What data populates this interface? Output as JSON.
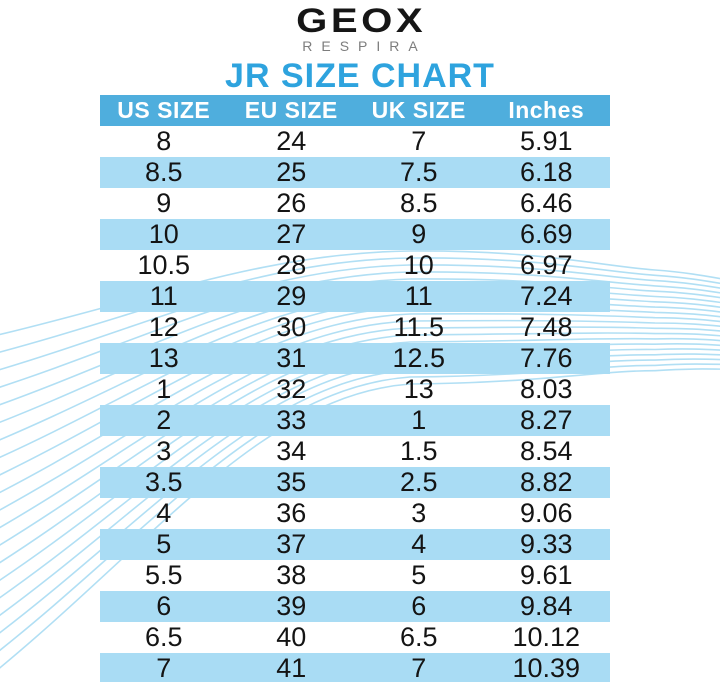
{
  "brand": {
    "logo": "GEOX",
    "tagline": "RESPIRA"
  },
  "chart_data": {
    "type": "table",
    "title": "JR SIZE CHART",
    "columns": [
      "US SIZE",
      "EU SIZE",
      "UK SIZE",
      "Inches"
    ],
    "rows": [
      [
        "8",
        "24",
        "7",
        "5.91"
      ],
      [
        "8.5",
        "25",
        "7.5",
        "6.18"
      ],
      [
        "9",
        "26",
        "8.5",
        "6.46"
      ],
      [
        "10",
        "27",
        "9",
        "6.69"
      ],
      [
        "10.5",
        "28",
        "10",
        "6.97"
      ],
      [
        "11",
        "29",
        "11",
        "7.24"
      ],
      [
        "12",
        "30",
        "11.5",
        "7.48"
      ],
      [
        "13",
        "31",
        "12.5",
        "7.76"
      ],
      [
        "1",
        "32",
        "13",
        "8.03"
      ],
      [
        "2",
        "33",
        "1",
        "8.27"
      ],
      [
        "3",
        "34",
        "1.5",
        "8.54"
      ],
      [
        "3.5",
        "35",
        "2.5",
        "8.82"
      ],
      [
        "4",
        "36",
        "3",
        "9.06"
      ],
      [
        "5",
        "37",
        "4",
        "9.33"
      ],
      [
        "5.5",
        "38",
        "5",
        "9.61"
      ],
      [
        "6",
        "39",
        "6",
        "9.84"
      ],
      [
        "6.5",
        "40",
        "6.5",
        "10.12"
      ],
      [
        "7",
        "41",
        "7",
        "10.39"
      ]
    ],
    "layout": {
      "row_striping": "alternating white / light blue, header solid blue",
      "grid": false
    }
  },
  "colors": {
    "header": "#4FAEDD",
    "stripe": "#A9DCF4",
    "wave": "#A9DCF3",
    "title": "#2EA3DE",
    "logo": "#161616",
    "gray": "#7d7d7d",
    "text": "#141414"
  }
}
